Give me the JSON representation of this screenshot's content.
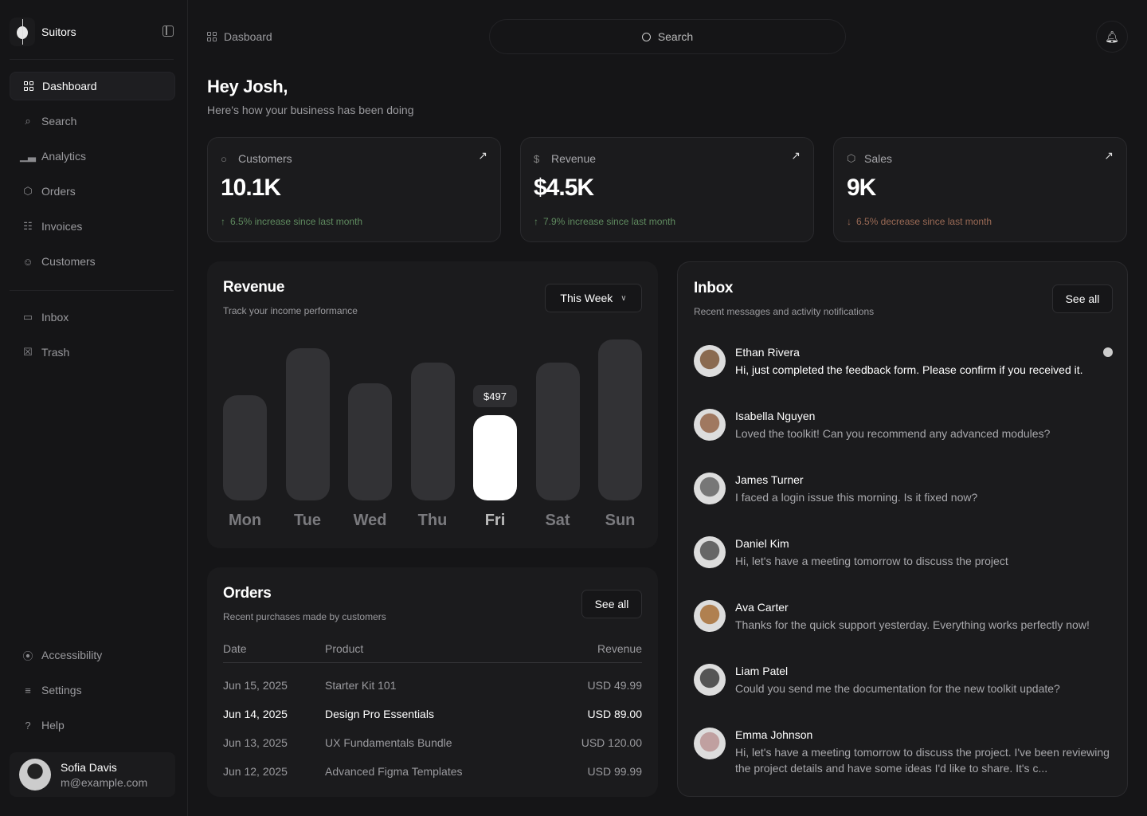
{
  "app": {
    "name": "Suitors"
  },
  "sidebar": {
    "items": [
      {
        "label": "Dashboard",
        "icon": "grid-icon",
        "active": true
      },
      {
        "label": "Search",
        "icon": "search-icon"
      },
      {
        "label": "Analytics",
        "icon": "bar-chart-icon"
      },
      {
        "label": "Orders",
        "icon": "package-icon"
      },
      {
        "label": "Invoices",
        "icon": "file-icon"
      },
      {
        "label": "Customers",
        "icon": "users-icon"
      },
      {
        "label": "Inbox",
        "icon": "inbox-icon"
      },
      {
        "label": "Trash",
        "icon": "trash-icon"
      }
    ],
    "bottom_items": [
      {
        "label": "Accessibility",
        "icon": "accessibility-icon"
      },
      {
        "label": "Settings",
        "icon": "sliders-icon"
      },
      {
        "label": "Help",
        "icon": "help-icon"
      }
    ],
    "user": {
      "name": "Sofia Davis",
      "email": "m@example.com"
    }
  },
  "header": {
    "breadcrumb": "Dasboard",
    "search_placeholder": "Search"
  },
  "greeting": {
    "title": "Hey Josh,",
    "subtitle": "Here's how your business has been doing"
  },
  "stats": [
    {
      "label": "Customers",
      "icon": "user-icon",
      "value": "10.1K",
      "change": "6.5% increase since last month",
      "trend": "up"
    },
    {
      "label": "Revenue",
      "icon": "dollar-icon",
      "value": "$4.5K",
      "change": "7.9% increase since last month",
      "trend": "up"
    },
    {
      "label": "Sales",
      "icon": "package-icon",
      "value": "9K",
      "change": "6.5% decrease since last month",
      "trend": "down"
    }
  ],
  "revenue": {
    "title": "Revenue",
    "subtitle": "Track your income performance",
    "period": "This Week",
    "tooltip": "$497"
  },
  "chart_data": {
    "type": "bar",
    "categories": [
      "Mon",
      "Tue",
      "Wed",
      "Thu",
      "Fri",
      "Sat",
      "Sun"
    ],
    "values": [
      613,
      887,
      683,
      804,
      497,
      804,
      938
    ],
    "highlight": "Fri",
    "ylim": [
      0,
      1000
    ],
    "grid": false,
    "colors": {
      "bar": "#323235",
      "highlight": "#ffffff"
    }
  },
  "orders": {
    "title": "Orders",
    "subtitle": "Recent purchases made by customers",
    "see_all": "See all",
    "columns": [
      "Date",
      "Product",
      "Revenue"
    ],
    "rows": [
      [
        "Jun 15, 2025",
        "Starter Kit 101",
        "USD 49.99"
      ],
      [
        "Jun 14, 2025",
        "Design Pro Essentials",
        "USD 89.00"
      ],
      [
        "Jun 13, 2025",
        "UX Fundamentals Bundle",
        "USD 120.00"
      ],
      [
        "Jun 12, 2025",
        "Advanced Figma Templates",
        "USD 99.99"
      ]
    ]
  },
  "inbox": {
    "title": "Inbox",
    "subtitle": "Recent messages and activity notifications",
    "see_all": "See all",
    "messages": [
      {
        "name": "Ethan Rivera",
        "text": "Hi, just completed the feedback form. Please confirm if you received it.",
        "unread": true
      },
      {
        "name": "Isabella Nguyen",
        "text": "Loved the toolkit! Can you recommend any advanced modules?"
      },
      {
        "name": "James Turner",
        "text": "I faced a login issue this morning. Is it fixed now?"
      },
      {
        "name": "Daniel Kim",
        "text": "Hi, let's have a meeting tomorrow to discuss the project"
      },
      {
        "name": "Ava Carter",
        "text": "Thanks for the quick support yesterday. Everything works perfectly now!"
      },
      {
        "name": "Liam Patel",
        "text": "Could you send me the documentation for the new toolkit update?"
      },
      {
        "name": "Emma Johnson",
        "text": "Hi, let's have a meeting tomorrow to discuss the project. I've been reviewing the project details and have some ideas I'd like to share. It's c..."
      }
    ]
  }
}
